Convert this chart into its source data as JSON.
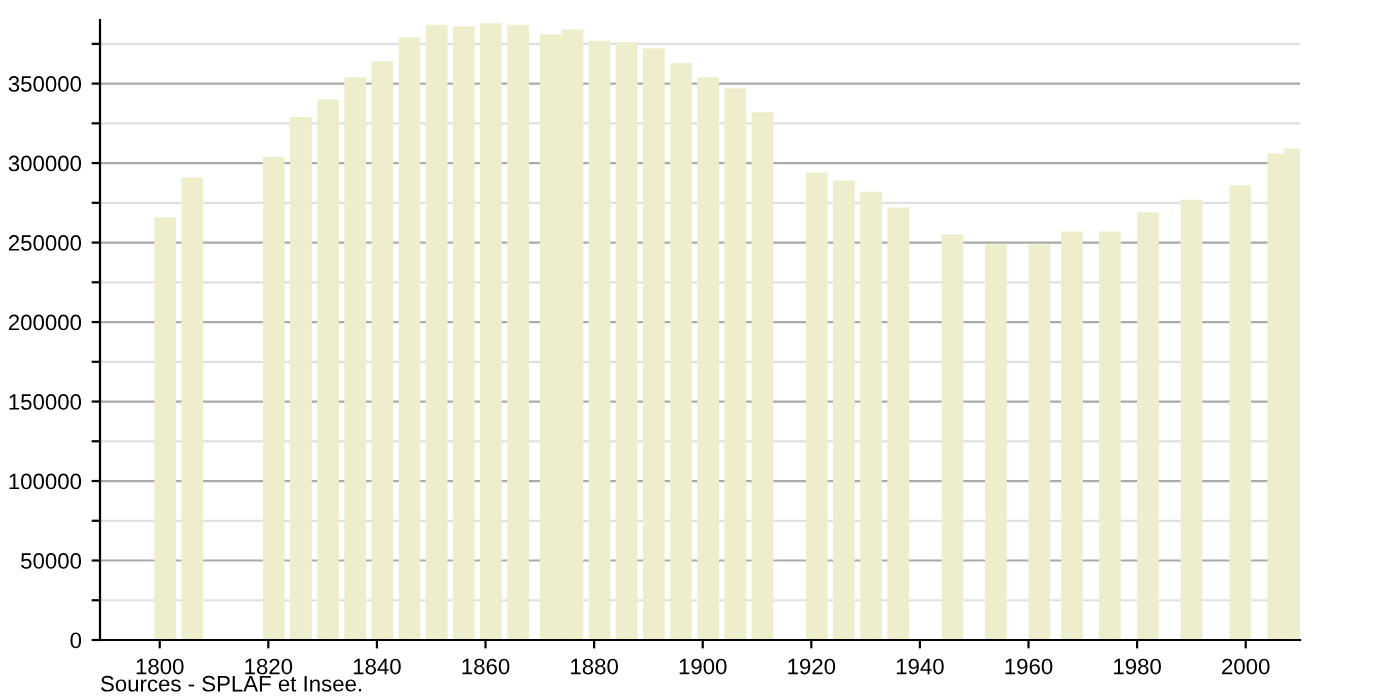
{
  "chart_data": {
    "type": "bar",
    "x": [
      1801,
      1806,
      1821,
      1826,
      1831,
      1836,
      1841,
      1846,
      1851,
      1856,
      1861,
      1866,
      1872,
      1876,
      1881,
      1886,
      1891,
      1896,
      1901,
      1906,
      1911,
      1921,
      1926,
      1931,
      1936,
      1946,
      1954,
      1962,
      1968,
      1975,
      1982,
      1990,
      1999,
      2006,
      2009
    ],
    "series": [
      {
        "color": "#eeeecc",
        "values": [
          266000,
          291000,
          304000,
          329000,
          340000,
          354000,
          364000,
          379000,
          387000,
          386000,
          388000,
          387000,
          381000,
          384000,
          377000,
          376000,
          372000,
          363000,
          354000,
          347000,
          332000,
          294000,
          289000,
          282000,
          272000,
          255000,
          249000,
          249000,
          257000,
          257000,
          269000,
          277000,
          286000,
          306000,
          309000
        ]
      }
    ],
    "xlim": [
      1789,
      2010
    ],
    "xticks": [
      1800,
      1820,
      1840,
      1860,
      1880,
      1900,
      1920,
      1940,
      1960,
      1980,
      2000
    ],
    "ylim": [
      0,
      390000
    ],
    "yticks": [
      0,
      {
        "value": 25000,
        "label": null
      },
      50000,
      {
        "value": 75000,
        "label": null
      },
      100000,
      {
        "value": 125000,
        "label": null
      },
      150000,
      {
        "value": 175000,
        "label": null
      },
      200000,
      {
        "value": 225000,
        "label": null
      },
      250000,
      {
        "value": 275000,
        "label": null
      },
      300000,
      {
        "value": 325000,
        "label": null
      },
      350000,
      {
        "value": 375000,
        "label": null
      }
    ],
    "grid": "y",
    "annotations": [
      "Sources - SPLAF et Insee."
    ]
  }
}
